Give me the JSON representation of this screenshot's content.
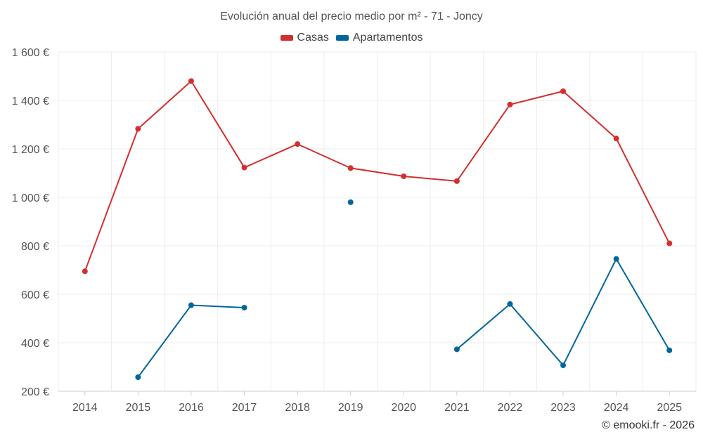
{
  "chart_data": {
    "type": "line",
    "title": "Evolución anual del precio medio por m² - 71 - Joncy",
    "categories": [
      "2014",
      "2015",
      "2016",
      "2017",
      "2018",
      "2019",
      "2020",
      "2021",
      "2022",
      "2023",
      "2024",
      "2025"
    ],
    "series": [
      {
        "name": "Casas",
        "color": "#d32f2f",
        "values": [
          695,
          1283,
          1480,
          1123,
          1220,
          1121,
          1087,
          1067,
          1383,
          1438,
          1243,
          810
        ]
      },
      {
        "name": "Apartamentos",
        "color": "#01669b",
        "values": [
          null,
          258,
          555,
          545,
          null,
          980,
          null,
          373,
          560,
          307,
          746,
          369
        ]
      }
    ],
    "ylim": [
      200,
      1600
    ],
    "yticks": [
      200,
      400,
      600,
      800,
      1000,
      1200,
      1400,
      1600
    ],
    "ytick_labels": [
      "200 €",
      "400 €",
      "600 €",
      "800 €",
      "1 000 €",
      "1 200 €",
      "1 400 €",
      "1 600 €"
    ],
    "grid": true,
    "legend_position": "top-center"
  },
  "credit": "© emooki.fr - 2026"
}
